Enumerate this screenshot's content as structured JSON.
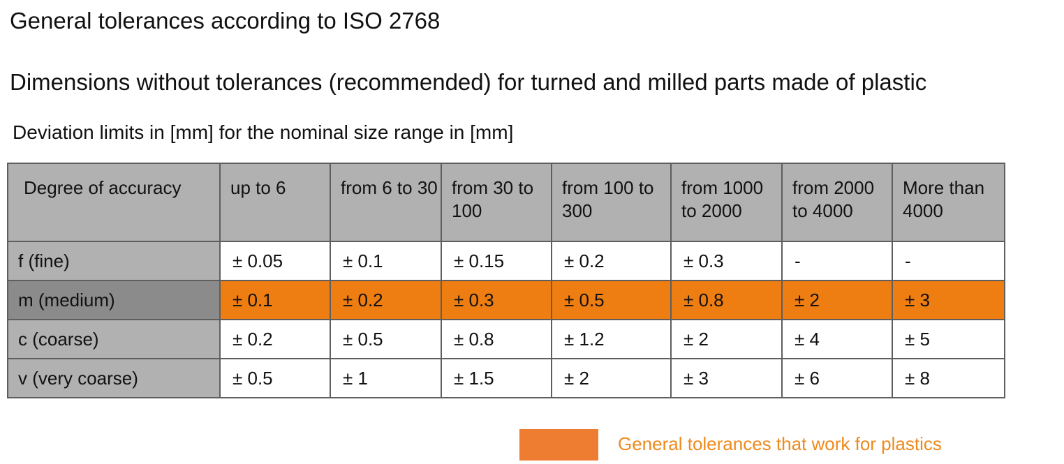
{
  "title": "General tolerances according to ISO 2768",
  "subtitle": "Dimensions without tolerances (recommended) for turned and milled parts made of plastic",
  "caption": "Deviation limits in [mm] for the nominal size range in [mm]",
  "table": {
    "headers": [
      "Degree of accuracy",
      "up to 6",
      "from 6 to 30",
      "from 30 to 100",
      "from 100 to 300",
      "from 1000 to 2000",
      "from 2000 to 4000",
      "More than 4000"
    ],
    "rows": [
      {
        "label": "f (fine)",
        "values": [
          "± 0.05",
          "± 0.1",
          "± 0.15",
          "± 0.2",
          "± 0.3",
          "-",
          "-"
        ]
      },
      {
        "label": "m (medium)",
        "values": [
          "± 0.1",
          "± 0.2",
          "± 0.3",
          "± 0.5",
          "± 0.8",
          "± 2",
          "± 3"
        ]
      },
      {
        "label": "c (coarse)",
        "values": [
          "± 0.2",
          "± 0.5",
          "± 0.8",
          "± 1.2",
          "± 2",
          "± 4",
          "± 5"
        ]
      },
      {
        "label": "v (very coarse)",
        "values": [
          "± 0.5",
          "± 1",
          "± 1.5",
          "± 2",
          "± 3",
          "± 6",
          "± 8"
        ]
      }
    ]
  },
  "legend": {
    "label": "General tolerances that work for plastics",
    "color": "#ee7d31"
  },
  "colors": {
    "highlight_row": "#ee7d12",
    "header_gray": "#b1b1b1",
    "highlight_row_head": "#8b8b8b",
    "legend_text": "#ee8a1e"
  }
}
